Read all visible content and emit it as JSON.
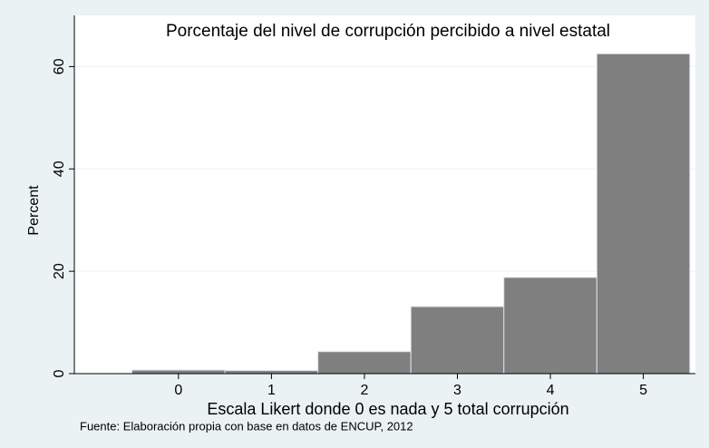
{
  "chart_data": {
    "type": "histogram",
    "title": "Porcentaje del nivel de corrupción percibido a nivel estatal",
    "x_label": "Escala Likert donde 0 es nada y 5 total corrupción",
    "y_label": "Percent",
    "note": "Fuente: Elaboración propia con base en datos de ENCUP, 2012",
    "bins": [
      -0.5,
      0.5,
      1.5,
      2.5,
      3.5,
      4.5,
      5.5
    ],
    "values": [
      0.7,
      0.6,
      4.3,
      13.1,
      18.8,
      62.5
    ],
    "color": "#7f7f7f",
    "xlim": [
      -1.12,
      5.56
    ],
    "xticks": [
      0,
      1,
      2,
      3,
      4,
      5
    ],
    "ylim": [
      0,
      70
    ],
    "yticks": [
      0,
      20,
      40,
      60
    ],
    "grid": true
  }
}
